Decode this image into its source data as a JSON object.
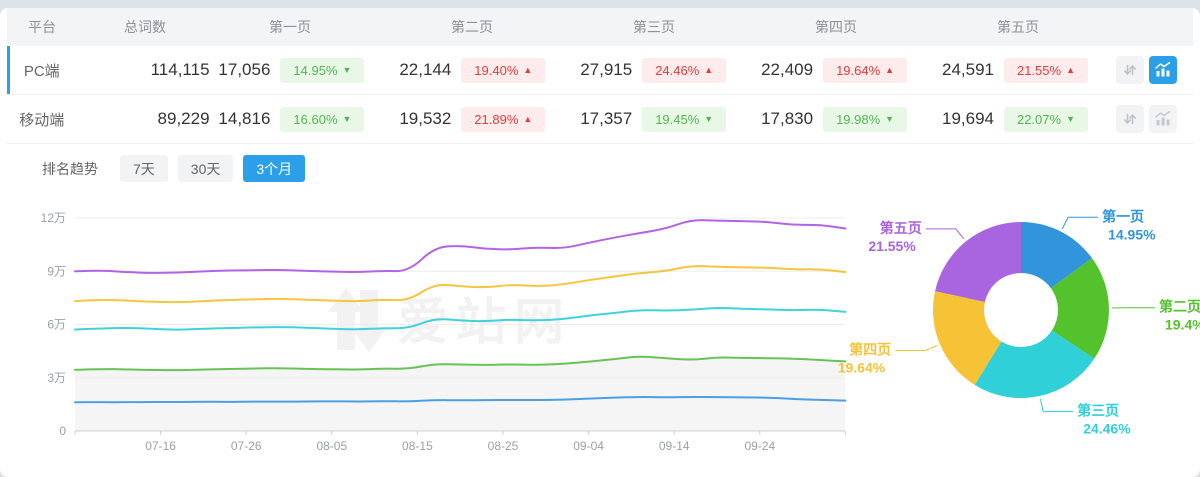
{
  "table": {
    "headers": [
      "平台",
      "总词数",
      "第一页",
      "第二页",
      "第三页",
      "第四页",
      "第五页"
    ],
    "rows": [
      {
        "platform": "PC端",
        "total": "114,115",
        "selected": true,
        "trend_icon_active": true,
        "pages": [
          {
            "value": "17,056",
            "change": "14.95%",
            "direction": "down"
          },
          {
            "value": "22,144",
            "change": "19.40%",
            "direction": "up"
          },
          {
            "value": "27,915",
            "change": "24.46%",
            "direction": "up"
          },
          {
            "value": "22,409",
            "change": "19.64%",
            "direction": "up"
          },
          {
            "value": "24,591",
            "change": "21.55%",
            "direction": "up"
          }
        ]
      },
      {
        "platform": "移动端",
        "total": "89,229",
        "selected": false,
        "trend_icon_active": false,
        "pages": [
          {
            "value": "14,816",
            "change": "16.60%",
            "direction": "down"
          },
          {
            "value": "19,532",
            "change": "21.89%",
            "direction": "up"
          },
          {
            "value": "17,357",
            "change": "19.45%",
            "direction": "down"
          },
          {
            "value": "17,830",
            "change": "19.98%",
            "direction": "down"
          },
          {
            "value": "19,694",
            "change": "22.07%",
            "direction": "down"
          }
        ]
      }
    ]
  },
  "trend_section": {
    "label": "排名趋势",
    "tabs": [
      {
        "label": "7天",
        "active": false
      },
      {
        "label": "30天",
        "active": false
      },
      {
        "label": "3个月",
        "active": true
      }
    ]
  },
  "watermark": "爱站网",
  "colors": {
    "accent_blue": "#2ba0e8",
    "badge_up_red": "#e23c3c",
    "badge_down_green": "#50b650",
    "chart_area_fill": "#f5f5f5",
    "gridline": "#ededed",
    "axis": "#ccd1d5"
  },
  "chart_data": [
    {
      "type": "line",
      "stacked_cumulative": true,
      "x_step_days": 3,
      "x_ticks": [
        {
          "day": 10,
          "label": "07-16"
        },
        {
          "day": 20,
          "label": "07-26"
        },
        {
          "day": 30,
          "label": "08-05"
        },
        {
          "day": 40,
          "label": "08-15"
        },
        {
          "day": 50,
          "label": "08-25"
        },
        {
          "day": 60,
          "label": "09-04"
        },
        {
          "day": 70,
          "label": "09-14"
        },
        {
          "day": 80,
          "label": "09-24"
        }
      ],
      "y_ticks": [
        {
          "value": 0,
          "label": "0"
        },
        {
          "value": 3,
          "label": "3万"
        },
        {
          "value": 6,
          "label": "6万"
        },
        {
          "value": 9,
          "label": "9万"
        },
        {
          "value": 12,
          "label": "12万"
        }
      ],
      "y_unit": "万",
      "ylim": [
        0,
        12.8
      ],
      "area_fill_series_index": 1,
      "series": [
        {
          "name": "第一页",
          "color": "#4aa0e3",
          "values": [
            1.62,
            1.63,
            1.62,
            1.64,
            1.63,
            1.65,
            1.64,
            1.66,
            1.65,
            1.66,
            1.67,
            1.66,
            1.68,
            1.67,
            1.74,
            1.73,
            1.74,
            1.75,
            1.74,
            1.76,
            1.83,
            1.88,
            1.92,
            1.9,
            1.92,
            1.91,
            1.9,
            1.88,
            1.8,
            1.75,
            1.71
          ]
        },
        {
          "name": "第二页",
          "color": "#67c356",
          "values": [
            3.45,
            3.5,
            3.47,
            3.44,
            3.42,
            3.46,
            3.5,
            3.52,
            3.54,
            3.5,
            3.48,
            3.46,
            3.52,
            3.5,
            3.78,
            3.74,
            3.72,
            3.76,
            3.72,
            3.78,
            3.9,
            4.05,
            4.22,
            4.1,
            4.0,
            4.15,
            4.12,
            4.1,
            4.08,
            4.0,
            3.92
          ]
        },
        {
          "name": "第三页",
          "color": "#40d2dc",
          "values": [
            5.72,
            5.78,
            5.82,
            5.75,
            5.7,
            5.76,
            5.8,
            5.84,
            5.86,
            5.82,
            5.76,
            5.72,
            5.8,
            5.78,
            6.35,
            6.22,
            6.18,
            6.28,
            6.22,
            6.3,
            6.5,
            6.65,
            6.82,
            6.78,
            6.82,
            6.95,
            6.88,
            6.85,
            6.8,
            6.85,
            6.71
          ]
        },
        {
          "name": "第四页",
          "color": "#f7c440",
          "values": [
            7.32,
            7.4,
            7.35,
            7.28,
            7.25,
            7.32,
            7.38,
            7.42,
            7.45,
            7.4,
            7.35,
            7.3,
            7.4,
            7.35,
            8.3,
            8.15,
            8.08,
            8.25,
            8.15,
            8.25,
            8.5,
            8.7,
            8.9,
            9.0,
            9.32,
            9.25,
            9.22,
            9.2,
            9.1,
            9.12,
            8.95
          ]
        },
        {
          "name": "第五页",
          "color": "#b264e3",
          "values": [
            9.0,
            9.06,
            8.95,
            8.9,
            8.92,
            9.0,
            9.04,
            9.06,
            9.08,
            9.02,
            8.98,
            8.95,
            9.02,
            9.0,
            10.35,
            10.45,
            10.25,
            10.22,
            10.35,
            10.28,
            10.6,
            10.9,
            11.15,
            11.4,
            11.9,
            11.85,
            11.82,
            11.78,
            11.6,
            11.62,
            11.41
          ]
        }
      ]
    },
    {
      "type": "pie",
      "donut": true,
      "items": [
        {
          "label": "第一页",
          "value": 14.95,
          "pct_label": "14.95%",
          "color": "#3295dc"
        },
        {
          "label": "第二页",
          "value": 19.4,
          "pct_label": "19.4%",
          "color": "#53c22d"
        },
        {
          "label": "第三页",
          "value": 24.46,
          "pct_label": "24.46%",
          "color": "#2fd0d8"
        },
        {
          "label": "第四页",
          "value": 19.64,
          "pct_label": "19.64%",
          "color": "#f6c236"
        },
        {
          "label": "第五页",
          "value": 21.55,
          "pct_label": "21.55%",
          "color": "#a964e0"
        }
      ]
    }
  ]
}
